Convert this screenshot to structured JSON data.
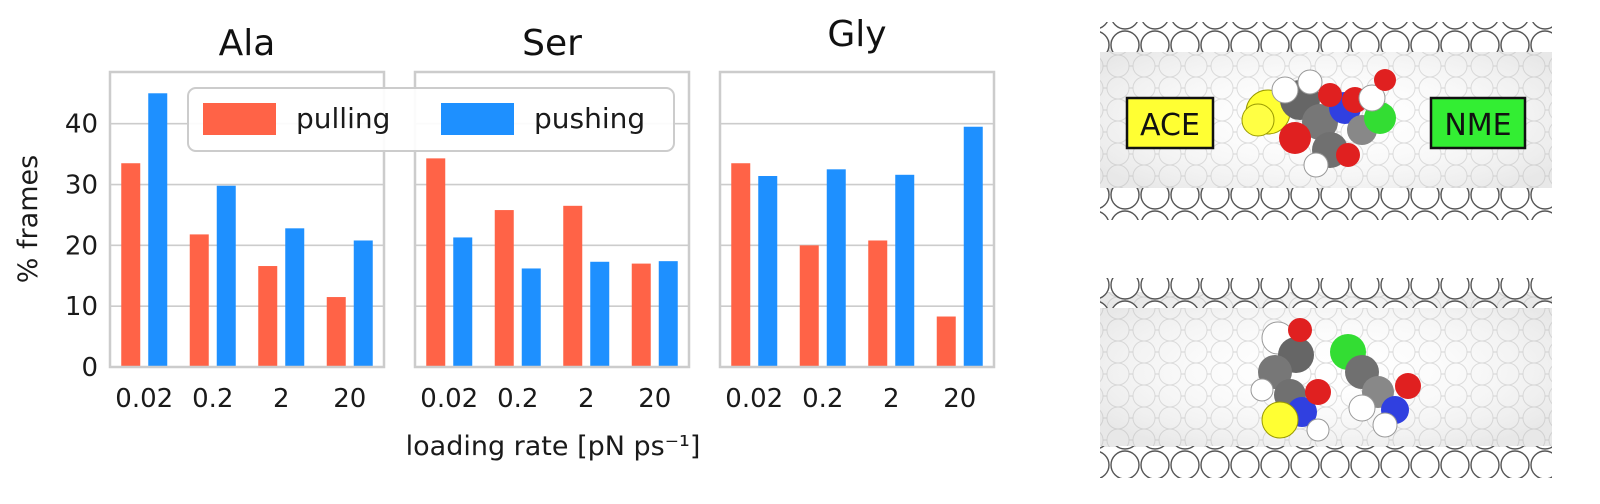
{
  "chart_data": [
    {
      "type": "bar",
      "title": "Ala",
      "categories": [
        "0.02",
        "0.2",
        "2",
        "20"
      ],
      "series": [
        {
          "name": "pulling",
          "values": [
            33.5,
            21.8,
            16.6,
            11.5
          ]
        },
        {
          "name": "pushing",
          "values": [
            45.0,
            29.8,
            22.8,
            20.8
          ]
        }
      ],
      "ylim": [
        0,
        48.5
      ]
    },
    {
      "type": "bar",
      "title": "Ser",
      "categories": [
        "0.02",
        "0.2",
        "2",
        "20"
      ],
      "series": [
        {
          "name": "pulling",
          "values": [
            34.3,
            25.8,
            26.5,
            17.0
          ]
        },
        {
          "name": "pushing",
          "values": [
            21.3,
            16.2,
            17.3,
            17.4
          ]
        }
      ],
      "ylim": [
        0,
        48.5
      ]
    },
    {
      "type": "bar",
      "title": "Gly",
      "categories": [
        "0.02",
        "0.2",
        "2",
        "20"
      ],
      "series": [
        {
          "name": "pulling",
          "values": [
            33.5,
            20.0,
            20.8,
            8.3
          ]
        },
        {
          "name": "pushing",
          "values": [
            31.4,
            32.5,
            31.6,
            39.5
          ]
        }
      ],
      "ylim": [
        0,
        48.5
      ]
    }
  ],
  "shared": {
    "ylabel": "% frames",
    "xlabel": "loading rate [pN ps⁻¹]",
    "yticks": [
      "0",
      "10",
      "20",
      "30",
      "40"
    ],
    "ytick_values": [
      0,
      10,
      20,
      30,
      40
    ],
    "grid": true,
    "legend_placement": "top (over first two panels)",
    "legend": [
      {
        "label": "pulling",
        "color": "#ff6347"
      },
      {
        "label": "pushing",
        "color": "#1e90ff"
      }
    ],
    "colors": {
      "pulling": "#ff6347",
      "pushing": "#1e90ff",
      "grid": "#cccccc",
      "frame": "#cccccc"
    }
  },
  "images": {
    "top": {
      "labels": [
        {
          "text": "ACE",
          "color": "#ffff33"
        },
        {
          "text": "NME",
          "color": "#33ee33"
        }
      ]
    },
    "bottom": {}
  }
}
